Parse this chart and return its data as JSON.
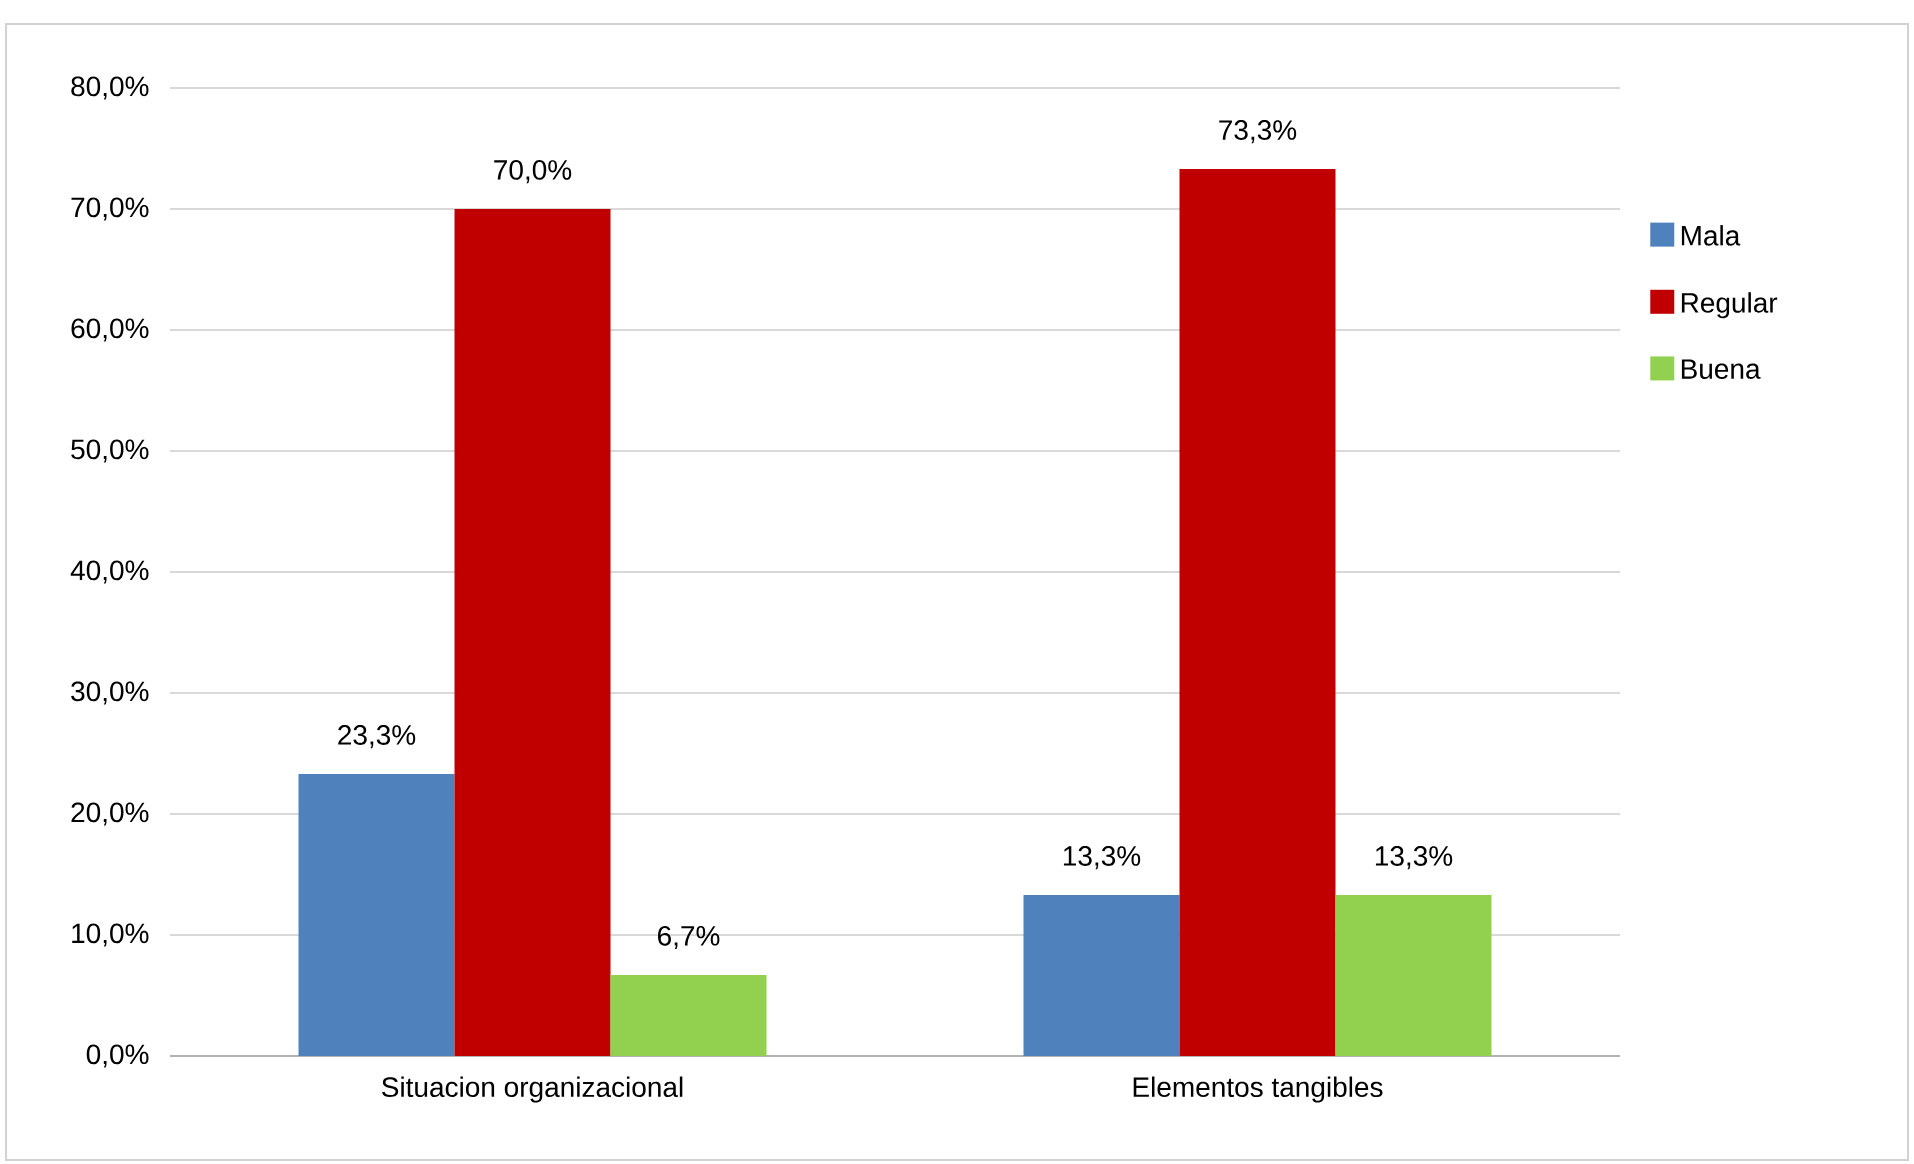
{
  "chart_data": {
    "type": "bar",
    "categories": [
      "Situacion organizacional",
      "Elementos tangibles"
    ],
    "series": [
      {
        "name": "Mala",
        "color": "#4f81bd",
        "values": [
          23.3,
          13.3
        ],
        "value_labels": [
          "23,3%",
          "13,3%"
        ]
      },
      {
        "name": "Regular",
        "color": "#c00000",
        "values": [
          70.0,
          73.3
        ],
        "value_labels": [
          "70,0%",
          "73,3%"
        ]
      },
      {
        "name": "Buena",
        "color": "#92d050",
        "values": [
          6.7,
          13.3
        ],
        "value_labels": [
          "6,7%",
          "13,3%"
        ]
      }
    ],
    "ylim": [
      0,
      80
    ],
    "yticks": [
      {
        "value": 0,
        "label": "0,0%"
      },
      {
        "value": 10,
        "label": "10,0%"
      },
      {
        "value": 20,
        "label": "20,0%"
      },
      {
        "value": 30,
        "label": "30,0%"
      },
      {
        "value": 40,
        "label": "40,0%"
      },
      {
        "value": 50,
        "label": "50,0%"
      },
      {
        "value": 60,
        "label": "60,0%"
      },
      {
        "value": 70,
        "label": "70,0%"
      },
      {
        "value": 80,
        "label": "80,0%"
      }
    ],
    "grid": "y",
    "legend": "right"
  }
}
